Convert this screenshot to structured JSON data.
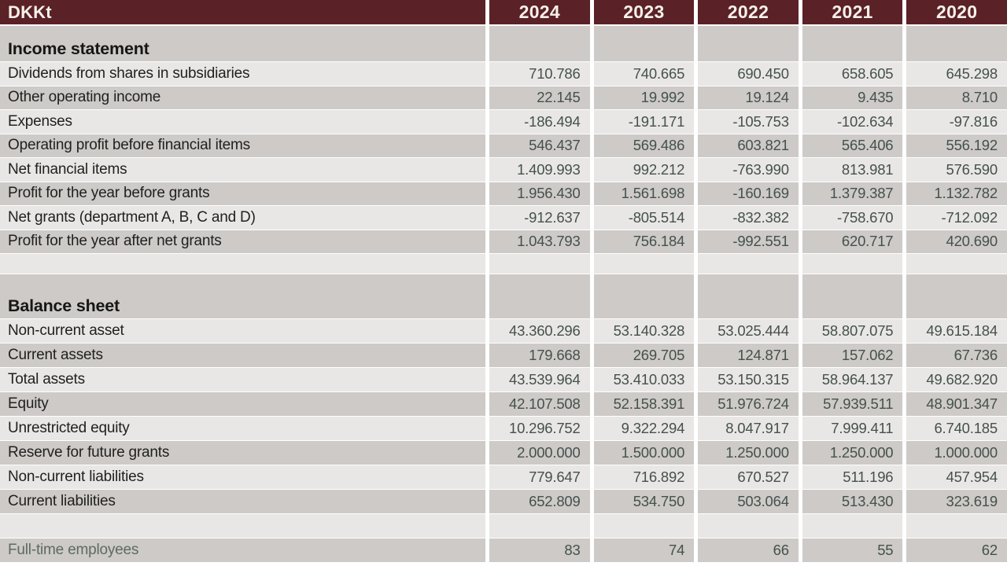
{
  "header": {
    "unit_label": "DKKt",
    "years": [
      "2024",
      "2023",
      "2022",
      "2021",
      "2020"
    ]
  },
  "sections": [
    {
      "title": "Income statement",
      "rows": [
        {
          "label": "Dividends from shares in subsidiaries",
          "values": [
            "710.786",
            "740.665",
            "690.450",
            "658.605",
            "645.298"
          ]
        },
        {
          "label": "Other operating income",
          "values": [
            "22.145",
            "19.992",
            "19.124",
            "9.435",
            "8.710"
          ]
        },
        {
          "label": "Expenses",
          "values": [
            "-186.494",
            "-191.171",
            "-105.753",
            "-102.634",
            "-97.816"
          ]
        },
        {
          "label": "Operating profit before financial items",
          "values": [
            "546.437",
            "569.486",
            "603.821",
            "565.406",
            "556.192"
          ]
        },
        {
          "label": "Net financial items",
          "values": [
            "1.409.993",
            "992.212",
            "-763.990",
            "813.981",
            "576.590"
          ]
        },
        {
          "label": "Profit for the year before grants",
          "values": [
            "1.956.430",
            "1.561.698",
            "-160.169",
            "1.379.387",
            "1.132.782"
          ]
        },
        {
          "label": "Net grants (department A, B, C and D)",
          "values": [
            "-912.637",
            "-805.514",
            "-832.382",
            "-758.670",
            "-712.092"
          ]
        },
        {
          "label": "Profit for the year after net grants",
          "values": [
            "1.043.793",
            "756.184",
            "-992.551",
            "620.717",
            "420.690"
          ]
        }
      ]
    },
    {
      "title": "Balance sheet",
      "rows": [
        {
          "label": "Non-current asset",
          "values": [
            "43.360.296",
            "53.140.328",
            "53.025.444",
            "58.807.075",
            "49.615.184"
          ]
        },
        {
          "label": "Current assets",
          "values": [
            "179.668",
            "269.705",
            "124.871",
            "157.062",
            "67.736"
          ]
        },
        {
          "label": "Total assets",
          "values": [
            "43.539.964",
            "53.410.033",
            "53.150.315",
            "58.964.137",
            "49.682.920"
          ]
        },
        {
          "label": "Equity",
          "values": [
            "42.107.508",
            "52.158.391",
            "51.976.724",
            "57.939.511",
            "48.901.347"
          ]
        },
        {
          "label": "Unrestricted equity",
          "values": [
            "10.296.752",
            "9.322.294",
            "8.047.917",
            "7.999.411",
            "6.740.185"
          ]
        },
        {
          "label": "Reserve for future grants",
          "values": [
            "2.000.000",
            "1.500.000",
            "1.250.000",
            "1.250.000",
            "1.000.000"
          ]
        },
        {
          "label": "Non-current liabilities",
          "values": [
            "779.647",
            "716.892",
            "670.527",
            "511.196",
            "457.954"
          ]
        },
        {
          "label": "Current liabilities",
          "values": [
            "652.809",
            "534.750",
            "503.064",
            "513.430",
            "323.619"
          ]
        }
      ]
    }
  ],
  "footer": {
    "label": "Full-time employees",
    "values": [
      "83",
      "74",
      "66",
      "55",
      "62"
    ]
  },
  "colors": {
    "header_bg": "#5a2127",
    "header_text": "#f6f1ea",
    "row_light": "#e9e7e5",
    "row_dark": "#cdcac8",
    "label_text": "#212120",
    "number_text": "#45514c",
    "footer_label_text": "#5d6b62"
  }
}
